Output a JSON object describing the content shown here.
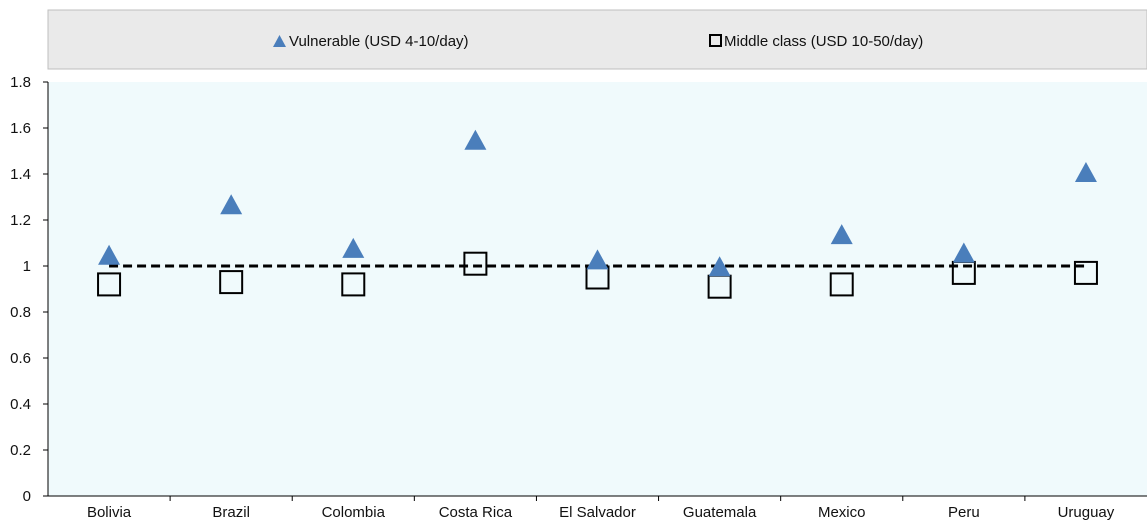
{
  "chart_data": {
    "type": "scatter",
    "categories": [
      "Bolivia",
      "Brazil",
      "Colombia",
      "Costa Rica",
      "El Salvador",
      "Guatemala",
      "Mexico",
      "Peru",
      "Uruguay"
    ],
    "series": [
      {
        "name": "Vulnerable (USD 4-10/day)",
        "marker": "triangle",
        "color": "#4A7EBB",
        "values": [
          1.04,
          1.26,
          1.07,
          1.54,
          1.02,
          0.99,
          1.13,
          1.05,
          1.4
        ]
      },
      {
        "name": "Middle class (USD 10-50/day)",
        "marker": "square-open",
        "color": "#000000",
        "values": [
          0.92,
          0.93,
          0.92,
          1.01,
          0.95,
          0.91,
          0.92,
          0.97,
          0.97
        ]
      }
    ],
    "reference_line": {
      "value": 1,
      "style": "dashed",
      "color": "#000000"
    },
    "ylim": [
      0,
      1.8
    ],
    "yticks": [
      "0",
      "0.2",
      "0.4",
      "0.6",
      "0.8",
      "1",
      "1.2",
      "1.4",
      "1.6",
      "1.8"
    ],
    "legend_position": "top",
    "plot_background": "#F0FAFC",
    "legend_background": "#EAEAEA",
    "grid": false
  }
}
